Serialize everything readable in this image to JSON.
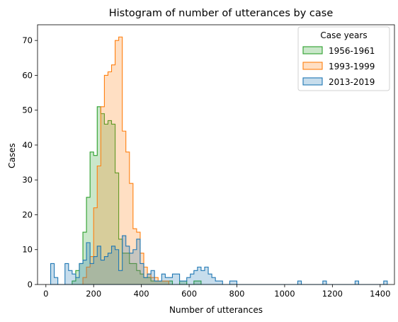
{
  "chart_data": {
    "type": "histogram",
    "title": "Histogram of number of utterances by case",
    "xlabel": "Number of utterances",
    "ylabel": "Cases",
    "xlim": [
      -35,
      1460
    ],
    "ylim": [
      0,
      74.5
    ],
    "xticks": [
      0,
      200,
      400,
      600,
      800,
      1000,
      1200,
      1400
    ],
    "yticks": [
      0,
      10,
      20,
      30,
      40,
      50,
      60,
      70
    ],
    "bin_start": 20,
    "bin_width": 15,
    "grid": false,
    "legend": {
      "title": "Case years",
      "placement": "top-right"
    },
    "series": [
      {
        "name": "1956-1961",
        "edge_color": "#2ca02c",
        "fill_color": "#2ca02c",
        "counts": [
          0,
          0,
          0,
          0,
          0,
          0,
          1,
          4,
          6,
          15,
          25,
          38,
          37,
          51,
          49,
          46,
          47,
          46,
          32,
          13,
          9,
          9,
          6,
          6,
          4,
          3,
          2,
          2,
          1,
          1,
          1,
          1,
          1,
          1,
          0,
          0,
          1,
          1,
          0,
          0,
          1,
          1,
          0,
          0,
          0,
          0,
          0,
          0,
          0,
          0,
          0,
          0,
          0,
          0,
          0,
          0,
          0,
          0,
          0,
          0,
          0,
          0,
          0,
          0,
          0,
          0,
          0,
          0,
          0,
          0,
          0,
          0,
          0,
          0,
          0,
          0,
          0,
          0,
          0,
          0,
          0,
          0,
          0,
          0,
          0,
          0,
          0,
          0,
          0,
          0,
          0,
          0,
          0,
          0
        ]
      },
      {
        "name": "1993-1999",
        "edge_color": "#ff7f0e",
        "fill_color": "#ff7f0e",
        "counts": [
          0,
          0,
          0,
          0,
          0,
          0,
          0,
          0,
          0,
          2,
          5,
          8,
          22,
          34,
          51,
          60,
          61,
          63,
          70,
          71,
          44,
          38,
          29,
          16,
          15,
          9,
          5,
          3,
          2,
          2,
          1,
          1,
          1,
          0,
          0,
          0,
          0,
          0,
          0,
          0,
          0,
          0,
          0,
          0,
          0,
          0,
          0,
          0,
          0,
          0,
          0,
          0,
          0,
          0,
          0,
          0,
          0,
          0,
          0,
          0,
          0,
          0,
          0,
          0,
          0,
          0,
          0,
          0,
          0,
          0,
          0,
          0,
          0,
          0,
          0,
          0,
          0,
          0,
          0,
          0,
          0,
          0,
          0,
          0,
          0,
          0,
          0,
          0,
          0,
          0,
          0,
          0,
          0,
          0
        ]
      },
      {
        "name": "2013-2019",
        "edge_color": "#1f77b4",
        "fill_color": "#1f77b4",
        "counts": [
          6,
          2,
          0,
          0,
          6,
          4,
          3,
          2,
          6,
          7,
          12,
          6,
          8,
          11,
          7,
          8,
          9,
          11,
          10,
          4,
          14,
          11,
          9,
          10,
          13,
          6,
          2,
          3,
          4,
          1,
          1,
          3,
          2,
          2,
          3,
          3,
          1,
          1,
          2,
          3,
          4,
          5,
          4,
          5,
          3,
          2,
          1,
          1,
          0,
          0,
          1,
          1,
          0,
          0,
          0,
          0,
          0,
          0,
          0,
          0,
          0,
          0,
          0,
          0,
          0,
          0,
          0,
          0,
          0,
          1,
          0,
          0,
          0,
          0,
          0,
          0,
          1,
          0,
          0,
          0,
          0,
          0,
          0,
          0,
          0,
          1,
          0,
          0,
          0,
          0,
          0,
          0,
          0,
          1
        ]
      }
    ]
  }
}
